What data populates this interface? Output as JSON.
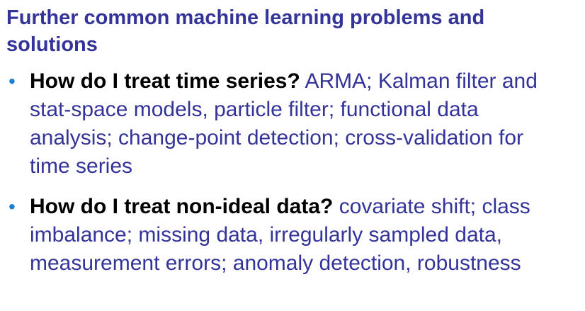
{
  "slide": {
    "title": "Further common machine learning problems and solutions",
    "bullet_glyph": "•",
    "bullets": [
      {
        "question": "How do I treat time series?",
        "answer": "ARMA; Kalman filter and stat-space models, particle filter; functional data analysis; change-point detection; cross-validation for time series"
      },
      {
        "question": "How do I treat non-ideal data?",
        "answer": "covariate shift; class imbalance; missing data, irregularly sampled data, measurement errors; anomaly detection, robustness"
      }
    ]
  },
  "colors": {
    "title": "#333399",
    "body": "#333399",
    "question": "#000000",
    "bullet": "#1f7fd0",
    "background": "#ffffff"
  }
}
